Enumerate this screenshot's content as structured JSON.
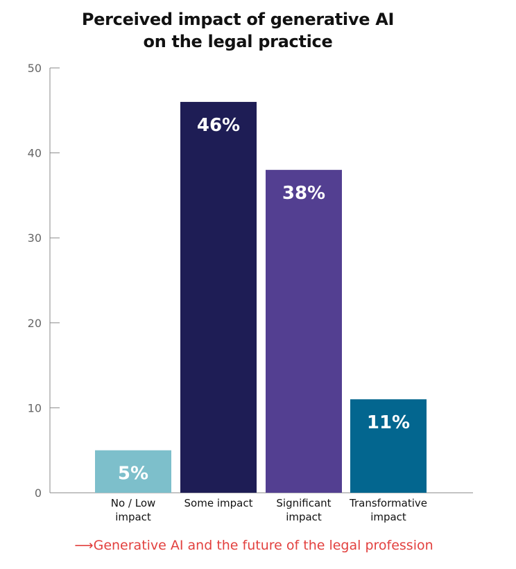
{
  "chart_data": {
    "type": "bar",
    "title_lines": [
      "Perceived impact of generative AI",
      "on the legal practice"
    ],
    "categories": [
      [
        "No / Low",
        "impact"
      ],
      [
        "Some impact"
      ],
      [
        "Significant",
        "impact"
      ],
      [
        "Transformative",
        "impact"
      ]
    ],
    "values": [
      5,
      46,
      38,
      11
    ],
    "data_labels": [
      "5%",
      "46%",
      "38%",
      "11%"
    ],
    "colors": [
      "#7dbfcb",
      "#1e1d55",
      "#533f91",
      "#03668f"
    ],
    "ylim": [
      0,
      50
    ],
    "yticks": [
      0,
      10,
      20,
      30,
      40,
      50
    ],
    "grid": false,
    "legend": "none"
  },
  "footer": {
    "text": "Generative AI and the future of the legal profession",
    "color": "#e2403e",
    "icon": "arrow-right-icon"
  }
}
